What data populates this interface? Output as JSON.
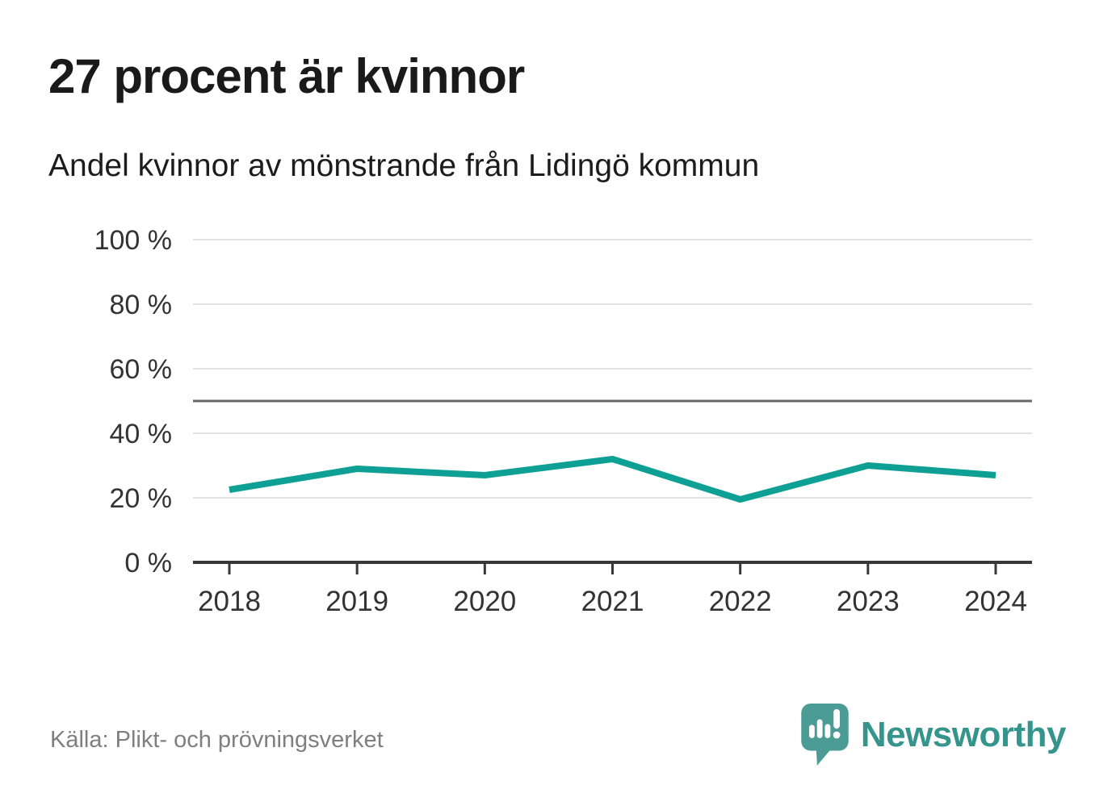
{
  "header": {
    "title": "27 procent är kvinnor",
    "subtitle": "Andel kvinnor av mönstrande från Lidingö kommun"
  },
  "chart_data": {
    "type": "line",
    "title": "27 procent är kvinnor",
    "subtitle": "Andel kvinnor av mönstrande från Lidingö kommun",
    "x": [
      "2018",
      "2019",
      "2020",
      "2021",
      "2022",
      "2023",
      "2024"
    ],
    "series": [
      {
        "name": "Andel kvinnor av mönstrande från Lidingö kommun",
        "values": [
          22.5,
          29,
          27,
          32,
          19.5,
          30,
          27
        ],
        "color": "#0ea094"
      }
    ],
    "xlabel": "",
    "ylabel": "",
    "ylim": [
      0,
      100
    ],
    "yticks": [
      {
        "value": 0,
        "label": "0 %"
      },
      {
        "value": 20,
        "label": "20 %"
      },
      {
        "value": 40,
        "label": "40 %"
      },
      {
        "value": 60,
        "label": "60 %"
      },
      {
        "value": 80,
        "label": "80 %"
      },
      {
        "value": 100,
        "label": "100 %"
      }
    ],
    "reference_line": {
      "value": 50,
      "color": "#68686c"
    },
    "grid": true,
    "grid_color": "#e2e2e2",
    "axis_color": "#38383c",
    "label_color": "#333333",
    "legend": "none"
  },
  "footer": {
    "source": "Källa: Plikt- och prövningsverket",
    "logo": {
      "text": "Newsworthy",
      "color": "#35948b",
      "icon": "speech-bubble-bar-chart-icon",
      "icon_color": "#4b9c95"
    }
  }
}
